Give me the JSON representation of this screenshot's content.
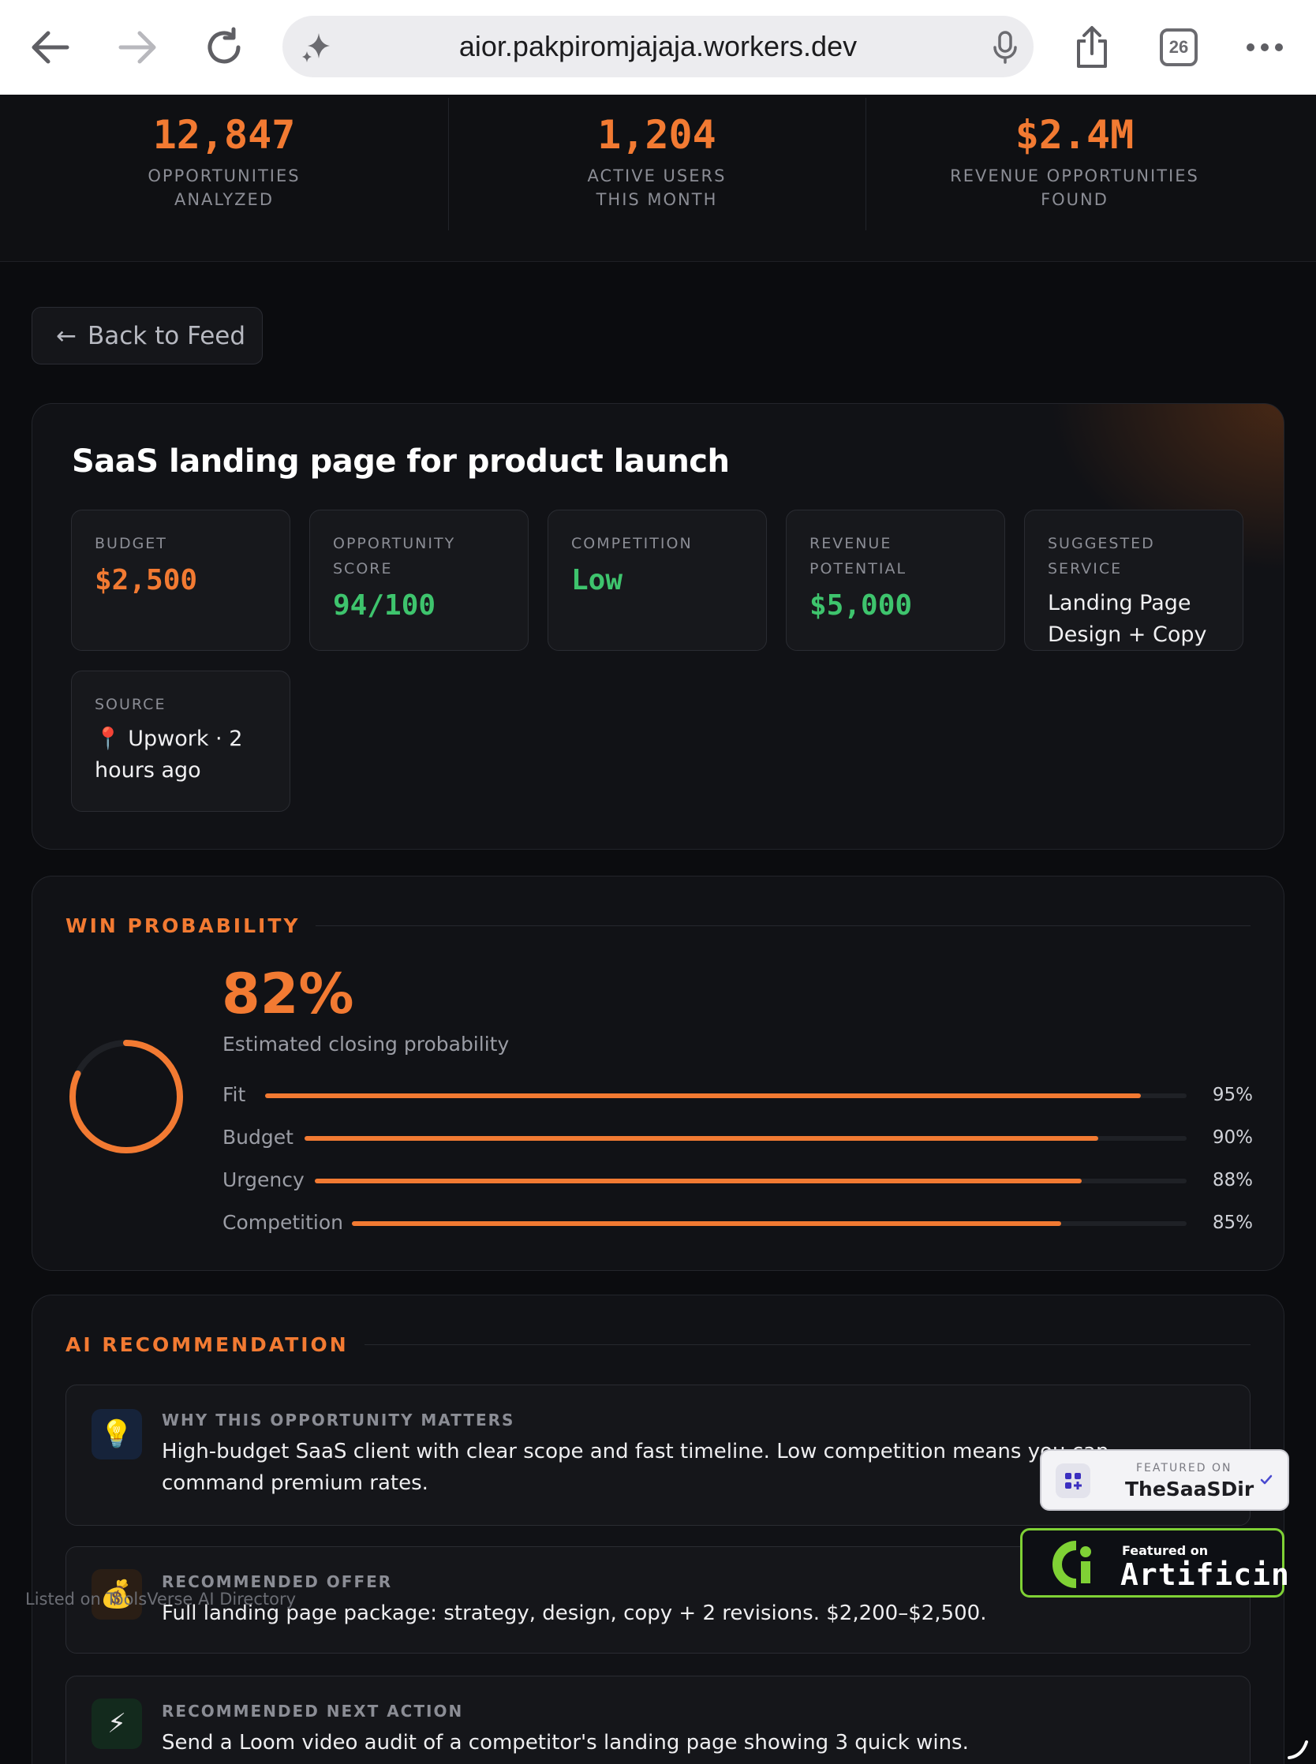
{
  "browser": {
    "url": "aior.pakpiromjajaja.workers.dev",
    "tab_count": "26"
  },
  "stats": [
    {
      "value": "12,847",
      "label_line1": "OPPORTUNITIES",
      "label_line2": "ANALYZED"
    },
    {
      "value": "1,204",
      "label_line1": "ACTIVE USERS",
      "label_line2": "THIS MONTH"
    },
    {
      "value": "$2.4M",
      "label_line1": "REVENUE OPPORTUNITIES",
      "label_line2": "FOUND"
    }
  ],
  "back_button": {
    "arrow": "←",
    "label": "Back to Feed"
  },
  "opportunity": {
    "title": "SaaS landing page for product launch",
    "metrics": [
      {
        "label": "BUDGET",
        "value": "$2,500"
      },
      {
        "label": "OPPORTUNITY SCORE",
        "value": "94/100"
      },
      {
        "label": "COMPETITION",
        "value": "Low"
      },
      {
        "label": "REVENUE POTENTIAL",
        "value": "$5,000"
      },
      {
        "label": "SUGGESTED SERVICE",
        "value": "Landing Page Design + Copy"
      }
    ],
    "source": {
      "label": "SOURCE",
      "icon": "📍",
      "value": "Upwork · 2 hours ago"
    }
  },
  "win_probability": {
    "title": "WIN PROBABILITY",
    "percent": "82%",
    "percent_value": 82,
    "subtitle": "Estimated closing probability",
    "factors": [
      {
        "label": "Fit",
        "pct": "95%",
        "value": 95
      },
      {
        "label": "Budget",
        "pct": "90%",
        "value": 90
      },
      {
        "label": "Urgency",
        "pct": "88%",
        "value": 88
      },
      {
        "label": "Competition",
        "pct": "85%",
        "value": 85
      }
    ]
  },
  "ai_recommendation": {
    "title": "AI RECOMMENDATION",
    "items": [
      {
        "icon": "💡",
        "icon_name": "lightbulb-icon",
        "label": "WHY THIS OPPORTUNITY MATTERS",
        "text": "High-budget SaaS client with clear scope and fast timeline. Low competition means you can command premium rates."
      },
      {
        "icon": "💰",
        "icon_name": "money-bag-icon",
        "label": "RECOMMENDED OFFER",
        "text": "Full landing page package: strategy, design, copy + 2 revisions. $2,200–$2,500."
      },
      {
        "icon": "⚡",
        "icon_name": "lightning-icon",
        "label": "RECOMMENDED NEXT ACTION",
        "text": "Send a Loom video audit of a competitor's landing page showing 3 quick wins."
      }
    ]
  },
  "badges": {
    "saasdir_small": "FEATURED ON",
    "saasdir_big": "TheSaaSDir",
    "artificin_small": "Featured on",
    "artificin_big": "Artificin",
    "listed": "Listed on ToolsVerse AI Directory"
  },
  "colors": {
    "accent": "#f27a32",
    "positive": "#3ec46d",
    "background": "#0b0c0f"
  }
}
